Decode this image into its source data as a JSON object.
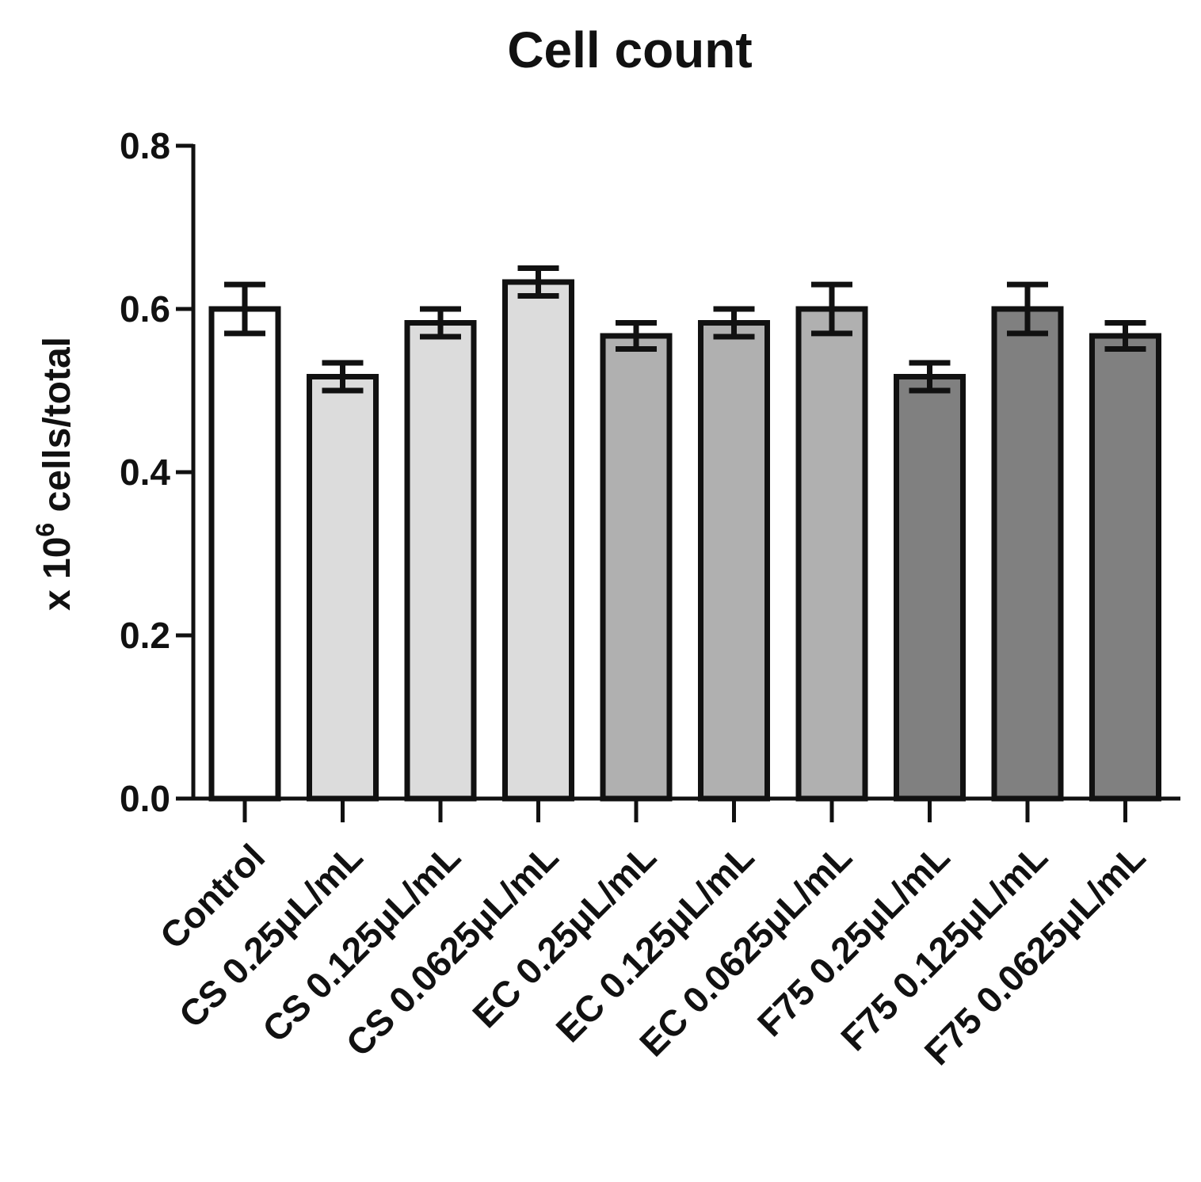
{
  "chart_data": {
    "type": "bar",
    "title": "Cell count",
    "ylabel": {
      "prefix": "x 10",
      "superscript": "6",
      "suffix": " cells/total"
    },
    "xlabel": "",
    "ylim": [
      0,
      0.8
    ],
    "yticks": [
      "0.0",
      "0.2",
      "0.4",
      "0.6",
      "0.8"
    ],
    "ytick_values": [
      0.0,
      0.2,
      0.4,
      0.6,
      0.8
    ],
    "categories": [
      "Control",
      "CS 0.25μL/mL",
      "CS 0.125μL/mL",
      "CS 0.0625μL/mL",
      "EC 0.25μL/mL",
      "EC 0.125μL/mL",
      "EC 0.0625μL/mL",
      "F75 0.25μL/mL",
      "F75 0.125μL/mL",
      "F75 0.0625μL/mL"
    ],
    "values": [
      0.6,
      0.517,
      0.583,
      0.633,
      0.567,
      0.583,
      0.6,
      0.517,
      0.6,
      0.567
    ],
    "errors": [
      0.03,
      0.017,
      0.017,
      0.017,
      0.016,
      0.017,
      0.03,
      0.017,
      0.03,
      0.016
    ],
    "bar_colors": [
      "#ffffff",
      "#dcdcdc",
      "#dcdcdc",
      "#dcdcdc",
      "#b0b0b0",
      "#b0b0b0",
      "#b0b0b0",
      "#808080",
      "#808080",
      "#808080"
    ],
    "grid": false,
    "legend": "none"
  }
}
